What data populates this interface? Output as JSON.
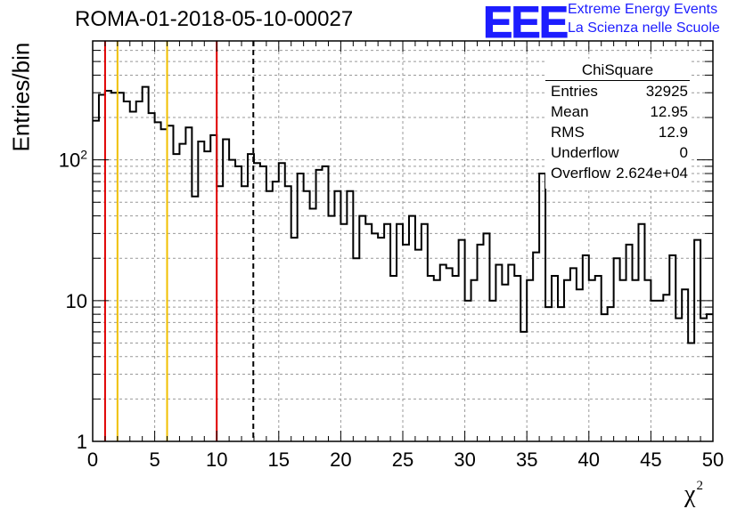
{
  "title": "ROMA-01-2018-05-10-00027",
  "logo": {
    "mark": "EEE",
    "line1": "Extreme Energy Events",
    "line2": "La Scienza nelle Scuole"
  },
  "stats": {
    "title": "ChiSquare",
    "rows": [
      {
        "key": "Entries",
        "value": "32925"
      },
      {
        "key": "Mean",
        "value": "12.95"
      },
      {
        "key": "RMS",
        "value": "12.9"
      },
      {
        "key": "Underflow",
        "value": "0"
      },
      {
        "key": "Overflow",
        "value": "2.624e+04"
      }
    ]
  },
  "chart_data": {
    "type": "histogram",
    "title": "ROMA-01-2018-05-10-00027",
    "xlabel": "χ²",
    "ylabel": "Entries/bin",
    "xlim": [
      0,
      50
    ],
    "ylim": [
      1,
      700
    ],
    "yscale": "log",
    "bin_width": 0.5,
    "grid": true,
    "xticks": [
      "0",
      "5",
      "10",
      "15",
      "20",
      "25",
      "30",
      "35",
      "40",
      "45",
      "50"
    ],
    "yticks": [
      "1",
      "10",
      "10²"
    ],
    "values": [
      190,
      290,
      310,
      300,
      300,
      260,
      220,
      260,
      330,
      215,
      185,
      165,
      175,
      110,
      130,
      170,
      55,
      135,
      115,
      150,
      65,
      140,
      100,
      90,
      65,
      110,
      95,
      90,
      60,
      70,
      95,
      65,
      28,
      80,
      60,
      45,
      85,
      90,
      40,
      60,
      35,
      60,
      20,
      40,
      35,
      30,
      28,
      35,
      15,
      35,
      25,
      40,
      23,
      35,
      15,
      14,
      18,
      17,
      15,
      27,
      10,
      14,
      25,
      30,
      10,
      18,
      13,
      18,
      15,
      6,
      14,
      22,
      80,
      9,
      15,
      9,
      14,
      17,
      12,
      21,
      14,
      15,
      8,
      9,
      20,
      14,
      25,
      14,
      35,
      14,
      10,
      10,
      11,
      21,
      7.5,
      12,
      5,
      27,
      7.5,
      8
    ],
    "vertical_lines": [
      {
        "x": 1,
        "color": "#e00000",
        "style": "solid"
      },
      {
        "x": 2,
        "color": "#f0c000",
        "style": "solid"
      },
      {
        "x": 6,
        "color": "#f0c000",
        "style": "solid"
      },
      {
        "x": 10,
        "color": "#e00000",
        "style": "solid"
      },
      {
        "x": 12.95,
        "color": "#000000",
        "style": "dashed"
      }
    ]
  }
}
